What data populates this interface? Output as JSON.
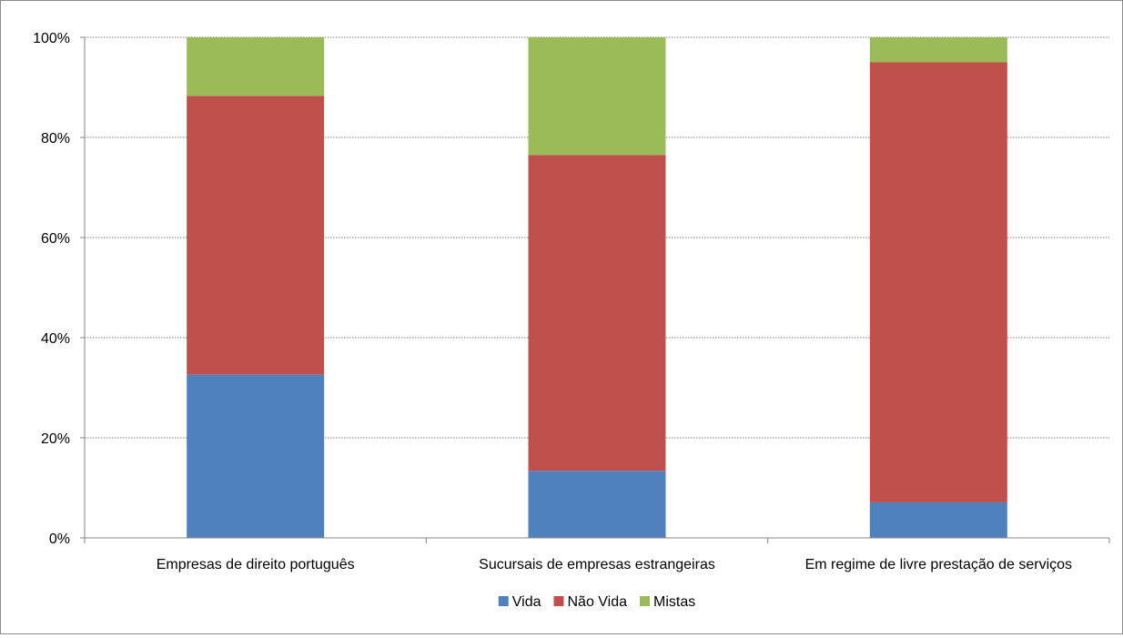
{
  "chart_data": {
    "type": "bar",
    "stacked": true,
    "percent": true,
    "categories": [
      "Empresas de direito português",
      "Sucursais de empresas estrangeiras",
      "Em regime de livre prestação de serviços"
    ],
    "series": [
      {
        "name": "Vida",
        "color": "#4f81bd",
        "values": [
          32.6,
          13.4,
          7.1
        ]
      },
      {
        "name": "Não Vida",
        "color": "#c0504d",
        "values": [
          55.7,
          63.1,
          87.9
        ]
      },
      {
        "name": "Mistas",
        "color": "#9bbb59",
        "values": [
          11.7,
          23.5,
          5.0
        ]
      }
    ],
    "ylim": [
      0,
      100
    ],
    "yticks": [
      "0%",
      "20%",
      "40%",
      "60%",
      "80%",
      "100%"
    ],
    "grid": true,
    "legend_position": "bottom"
  }
}
